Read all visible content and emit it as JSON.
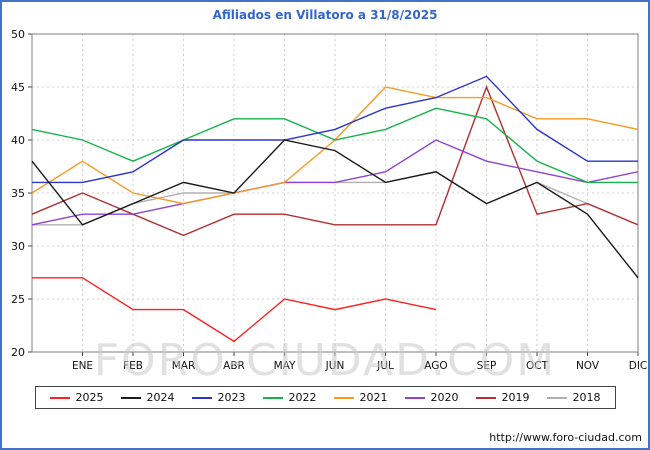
{
  "watermark": "FORO-CIUDAD.COM",
  "footer": {
    "url": "http://www.foro-ciudad.com"
  },
  "chart_data": {
    "type": "line",
    "title": "Afiliados en Villatoro a 31/8/2025",
    "xlabel": "",
    "ylabel": "",
    "x_labels": [
      "ENE",
      "FEB",
      "MAR",
      "ABR",
      "MAY",
      "JUN",
      "JUL",
      "AGO",
      "SEP",
      "OCT",
      "NOV",
      "DIC"
    ],
    "ylim": [
      20,
      50
    ],
    "ytick_step": 5,
    "grid": true,
    "legend_position": "bottom",
    "points_note": "each full series has 13 points: left-edge start value followed by one value per month; 2025 ends in AGO",
    "series": [
      {
        "name": "2025",
        "color": "#ff2020",
        "values": [
          27,
          27,
          24,
          24,
          21,
          25,
          24,
          25,
          24
        ]
      },
      {
        "name": "2024",
        "color": "#1a1a1a",
        "values": [
          38,
          32,
          34,
          36,
          35,
          40,
          39,
          36,
          37,
          34,
          36,
          33,
          27
        ]
      },
      {
        "name": "2023",
        "color": "#2b35c8",
        "values": [
          36,
          36,
          37,
          40,
          40,
          40,
          41,
          43,
          44,
          46,
          41,
          38,
          38
        ]
      },
      {
        "name": "2022",
        "color": "#18b24b",
        "values": [
          41,
          40,
          38,
          40,
          42,
          42,
          40,
          41,
          43,
          42,
          38,
          36,
          36
        ]
      },
      {
        "name": "2021",
        "color": "#f59a23",
        "values": [
          35,
          38,
          35,
          34,
          35,
          36,
          40,
          45,
          44,
          44,
          42,
          42,
          41
        ]
      },
      {
        "name": "2020",
        "color": "#8e44d0",
        "values": [
          32,
          33,
          33,
          34,
          35,
          36,
          36,
          37,
          40,
          38,
          37,
          36,
          37
        ]
      },
      {
        "name": "2019",
        "color": "#b03030",
        "values": [
          33,
          35,
          33,
          31,
          33,
          33,
          32,
          32,
          32,
          45,
          33,
          34,
          32
        ]
      },
      {
        "name": "2018",
        "color": "#b0b0b0",
        "values": [
          32,
          32,
          34,
          35,
          35,
          36,
          36,
          36,
          37,
          34,
          36,
          34,
          32
        ]
      }
    ]
  },
  "colors": {
    "frame": "#4472c4",
    "title": "#3366cc",
    "grid": "#cfcfcf",
    "axis": "#7f7f7f",
    "watermark": "#c9c9c9"
  }
}
